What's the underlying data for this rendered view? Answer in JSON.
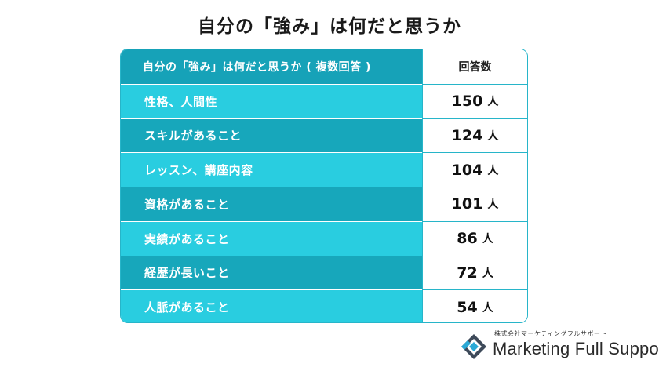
{
  "title": "自分の「強み」は何だと思うか",
  "header": {
    "label": "自分の「強み」は何だと思うか ( 複数回答 )",
    "value": "回答数"
  },
  "colors": {
    "header_bg": "#16a2b8",
    "row_light": "#29cde0",
    "row_dark": "#17a7bb",
    "border": "#27b5c9"
  },
  "unit": "人",
  "rows": [
    {
      "label": "性格、人間性",
      "value": "150"
    },
    {
      "label": "スキルがあること",
      "value": "124"
    },
    {
      "label": "レッスン、講座内容",
      "value": "104"
    },
    {
      "label": "資格があること",
      "value": "101"
    },
    {
      "label": "実績があること",
      "value": "86"
    },
    {
      "label": "経歴が長いこと",
      "value": "72"
    },
    {
      "label": "人脈があること",
      "value": "54"
    }
  ],
  "chart_data": {
    "type": "table",
    "title": "自分の「強み」は何だと思うか",
    "columns": [
      "自分の「強み」は何だと思うか ( 複数回答 )",
      "回答数"
    ],
    "categories": [
      "性格、人間性",
      "スキルがあること",
      "レッスン、講座内容",
      "資格があること",
      "実績があること",
      "経歴が長いこと",
      "人脈があること"
    ],
    "values": [
      150,
      124,
      104,
      101,
      86,
      72,
      54
    ],
    "unit": "人"
  },
  "logo": {
    "company_jp": "株式会社マーケティングフルサポート",
    "company_en": "Marketing Full Support",
    "icon": "logo-diamond-mark"
  }
}
